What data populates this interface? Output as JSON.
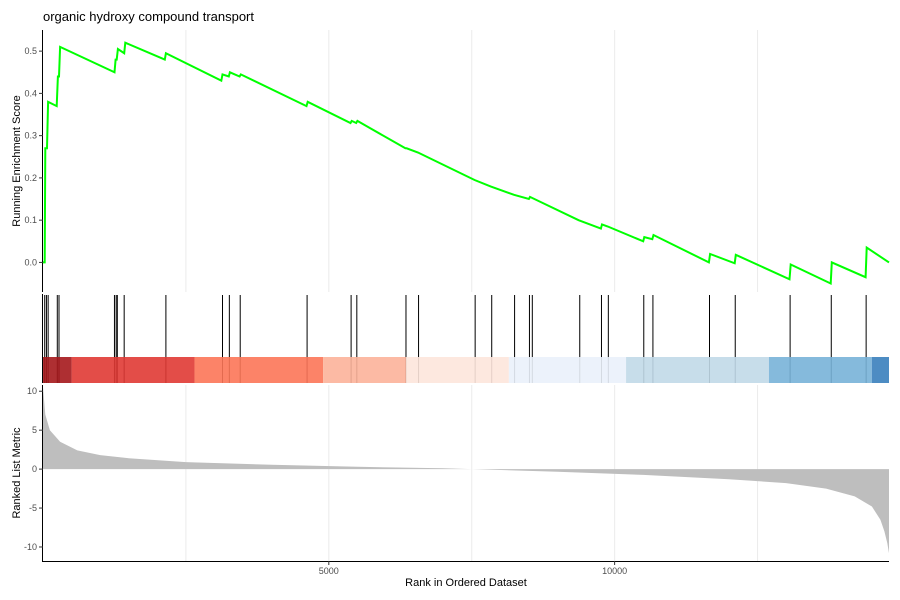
{
  "chart_data": {
    "type": "line",
    "title": "organic hydroxy compound transport",
    "xlabel": "Rank in Ordered Dataset",
    "x_ticks": [
      5000,
      10000
    ],
    "xlim": [
      0,
      14800
    ],
    "grid": true,
    "running_score": {
      "ylabel": "Running Enrichment Score",
      "y_ticks": [
        0.0,
        0.1,
        0.2,
        0.3,
        0.4,
        0.5
      ],
      "ylim": [
        -0.07,
        0.55
      ],
      "color": "#00ff00",
      "points": [
        [
          0,
          0.0
        ],
        [
          30,
          0.0
        ],
        [
          40,
          0.27
        ],
        [
          70,
          0.27
        ],
        [
          90,
          0.38
        ],
        [
          240,
          0.37
        ],
        [
          260,
          0.44
        ],
        [
          280,
          0.44
        ],
        [
          300,
          0.51
        ],
        [
          1250,
          0.45
        ],
        [
          1270,
          0.48
        ],
        [
          1290,
          0.48
        ],
        [
          1310,
          0.505
        ],
        [
          1420,
          0.495
        ],
        [
          1440,
          0.52
        ],
        [
          2130,
          0.48
        ],
        [
          2150,
          0.495
        ],
        [
          3120,
          0.43
        ],
        [
          3140,
          0.445
        ],
        [
          3250,
          0.44
        ],
        [
          3270,
          0.45
        ],
        [
          3440,
          0.44
        ],
        [
          3460,
          0.445
        ],
        [
          4610,
          0.37
        ],
        [
          4630,
          0.38
        ],
        [
          5380,
          0.33
        ],
        [
          5400,
          0.335
        ],
        [
          5480,
          0.33
        ],
        [
          5500,
          0.335
        ],
        [
          6340,
          0.27
        ],
        [
          6360,
          0.27
        ],
        [
          6560,
          0.26
        ],
        [
          7550,
          0.195
        ],
        [
          7830,
          0.18
        ],
        [
          8240,
          0.16
        ],
        [
          8500,
          0.15
        ],
        [
          8520,
          0.155
        ],
        [
          9370,
          0.1
        ],
        [
          9760,
          0.08
        ],
        [
          9780,
          0.09
        ],
        [
          9880,
          0.085
        ],
        [
          10500,
          0.05
        ],
        [
          10520,
          0.06
        ],
        [
          10660,
          0.055
        ],
        [
          10680,
          0.065
        ],
        [
          11650,
          0.0
        ],
        [
          11670,
          0.02
        ],
        [
          12100,
          -0.002
        ],
        [
          12120,
          0.018
        ],
        [
          13060,
          -0.04
        ],
        [
          13080,
          -0.005
        ],
        [
          13780,
          -0.05
        ],
        [
          13800,
          0.0
        ],
        [
          14390,
          -0.035
        ],
        [
          14410,
          0.035
        ],
        [
          14800,
          0.0
        ]
      ]
    },
    "gene_hits": [
      30,
      60,
      90,
      250,
      280,
      1250,
      1280,
      1300,
      1420,
      2150,
      3140,
      3260,
      3450,
      4620,
      5390,
      5490,
      6350,
      6570,
      7560,
      7850,
      8250,
      8510,
      8560,
      9390,
      9770,
      9890,
      10510,
      10670,
      11660,
      12110,
      13070,
      13790,
      14400
    ],
    "color_bar": [
      {
        "start": 0,
        "end": 500,
        "color": "#a5181c"
      },
      {
        "start": 500,
        "end": 2650,
        "color": "#e03a34"
      },
      {
        "start": 2650,
        "end": 4900,
        "color": "#fc7558"
      },
      {
        "start": 4900,
        "end": 6350,
        "color": "#fcb39a"
      },
      {
        "start": 6350,
        "end": 8150,
        "color": "#fde5db"
      },
      {
        "start": 8150,
        "end": 10200,
        "color": "#eaf1fb"
      },
      {
        "start": 10200,
        "end": 12700,
        "color": "#c1d9e8"
      },
      {
        "start": 12700,
        "end": 14500,
        "color": "#78b2d8"
      },
      {
        "start": 14500,
        "end": 14800,
        "color": "#3a7fbd"
      }
    ],
    "ranked_metric": {
      "ylabel": "Ranked List Metric",
      "y_ticks": [
        10,
        5,
        0,
        -5,
        -10
      ],
      "ylim": [
        -11.8,
        10.8
      ],
      "fill_color": "#bebebe",
      "points": [
        [
          0,
          10.5
        ],
        [
          40,
          7.0
        ],
        [
          120,
          5.0
        ],
        [
          300,
          3.5
        ],
        [
          600,
          2.4
        ],
        [
          1000,
          1.8
        ],
        [
          1500,
          1.4
        ],
        [
          2500,
          0.9
        ],
        [
          4000,
          0.55
        ],
        [
          5500,
          0.3
        ],
        [
          7000,
          0.1
        ],
        [
          7500,
          0.0
        ],
        [
          9000,
          -0.35
        ],
        [
          10500,
          -0.75
        ],
        [
          12000,
          -1.3
        ],
        [
          13000,
          -1.8
        ],
        [
          13700,
          -2.5
        ],
        [
          14200,
          -3.5
        ],
        [
          14500,
          -4.8
        ],
        [
          14650,
          -6.5
        ],
        [
          14720,
          -8.0
        ],
        [
          14770,
          -9.5
        ],
        [
          14800,
          -10.8
        ]
      ]
    }
  }
}
